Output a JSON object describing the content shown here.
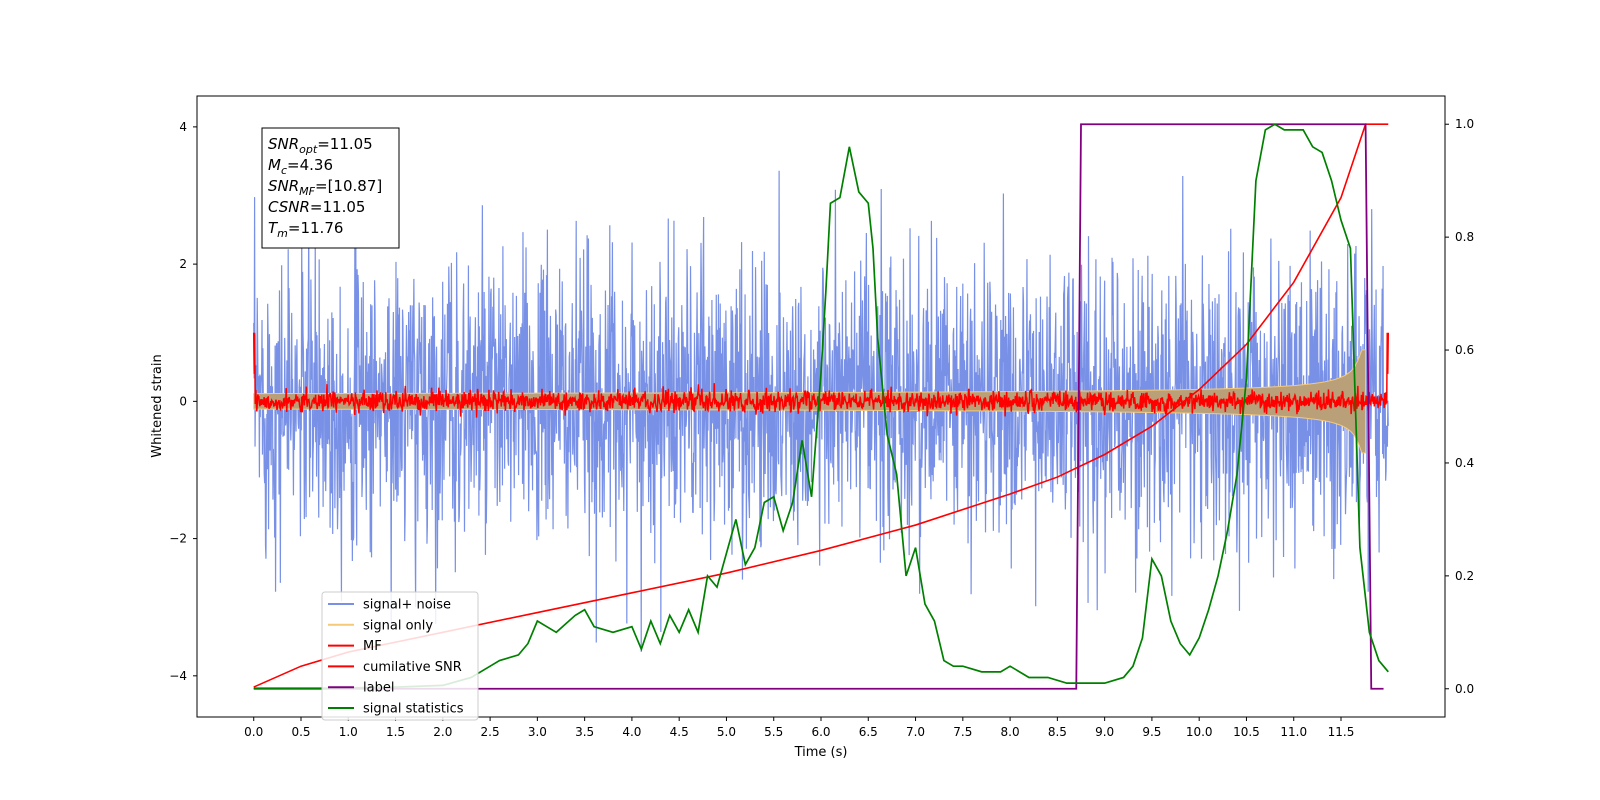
{
  "chart_data": {
    "type": "line",
    "xlabel": "Time (s)",
    "ylabel": "Whitened strain",
    "xlim": [
      -0.6,
      12.6
    ],
    "ylim": [
      -4.6,
      4.45
    ],
    "y2lim": [
      -0.05,
      1.05
    ],
    "x_ticks": [
      "0.0",
      "0.5",
      "1.0",
      "1.5",
      "2.0",
      "2.5",
      "3.0",
      "3.5",
      "4.0",
      "4.5",
      "5.0",
      "5.5",
      "6.0",
      "6.5",
      "7.0",
      "7.5",
      "8.0",
      "8.5",
      "9.0",
      "9.5",
      "10.0",
      "10.5",
      "11.0",
      "11.5"
    ],
    "y_ticks": [
      "4",
      "2",
      "0",
      "−2",
      "−4"
    ],
    "y2_ticks": [
      "1.0",
      "0.8",
      "0.6",
      "0.4",
      "0.2",
      "0.0"
    ],
    "legend_position": "bottom-left",
    "colors": {
      "signal_noise": "#7891e6",
      "signal_only": "#f5c97a",
      "mf": "#ff0000",
      "cumulative_snr": "#ff0000",
      "label": "#800080",
      "signal_statistics": "#008000"
    },
    "annotation": {
      "lines": [
        {
          "base": "SNR",
          "sub": "opt",
          "rest": "=11.05"
        },
        {
          "base": "M",
          "sub": "c",
          "rest": "=4.36"
        },
        {
          "base": "SNR",
          "sub": "MF",
          "rest": "=[10.87]"
        },
        {
          "base": "CSNR",
          "sub": "",
          "rest": "=11.05"
        },
        {
          "base": "T",
          "sub": "m",
          "rest": "=11.76"
        }
      ]
    },
    "series": [
      {
        "name": "signal+ noise",
        "axis": "left",
        "style": "noise band",
        "t_range": [
          0.0,
          12.0
        ],
        "amplitude_approx": [
          -4.1,
          4.05
        ]
      },
      {
        "name": "signal only",
        "axis": "left",
        "style": "chirp envelope",
        "t_range": [
          0.0,
          11.76
        ],
        "envelope_end": 0.75
      },
      {
        "name": "MF",
        "axis": "left",
        "style": "noisy trace",
        "t_range": [
          0.0,
          12.0
        ],
        "spread_approx": 0.15
      },
      {
        "name": "cumilative SNR",
        "axis": "right",
        "x": [
          0.0,
          0.5,
          1.0,
          2.0,
          3.0,
          4.0,
          5.0,
          6.0,
          7.0,
          8.0,
          8.5,
          9.0,
          9.5,
          10.0,
          10.5,
          11.0,
          11.5,
          11.76,
          12.0
        ],
        "y": [
          0.003,
          0.04,
          0.065,
          0.1,
          0.135,
          0.17,
          0.205,
          0.245,
          0.29,
          0.345,
          0.375,
          0.415,
          0.465,
          0.53,
          0.61,
          0.72,
          0.87,
          1.0,
          1.0
        ]
      },
      {
        "name": "label",
        "axis": "right",
        "x": [
          0.0,
          8.7,
          8.75,
          11.76,
          11.82,
          11.95
        ],
        "y": [
          0.0,
          0.0,
          1.0,
          1.0,
          0.0,
          0.0
        ]
      },
      {
        "name": "signal statistics",
        "axis": "right",
        "x": [
          0.0,
          0.8,
          1.5,
          2.0,
          2.3,
          2.5,
          2.6,
          2.8,
          2.9,
          3.0,
          3.1,
          3.2,
          3.4,
          3.5,
          3.6,
          3.8,
          4.0,
          4.1,
          4.2,
          4.3,
          4.4,
          4.5,
          4.6,
          4.7,
          4.8,
          4.9,
          5.0,
          5.1,
          5.2,
          5.3,
          5.4,
          5.5,
          5.6,
          5.7,
          5.8,
          5.9,
          6.0,
          6.05,
          6.1,
          6.2,
          6.3,
          6.4,
          6.5,
          6.55,
          6.6,
          6.7,
          6.8,
          6.9,
          7.0,
          7.1,
          7.2,
          7.3,
          7.4,
          7.5,
          7.7,
          7.9,
          8.0,
          8.2,
          8.4,
          8.6,
          8.8,
          9.0,
          9.2,
          9.3,
          9.4,
          9.5,
          9.6,
          9.7,
          9.8,
          9.9,
          10.0,
          10.1,
          10.2,
          10.3,
          10.4,
          10.5,
          10.6,
          10.7,
          10.8,
          10.9,
          11.0,
          11.1,
          11.2,
          11.3,
          11.4,
          11.5,
          11.6,
          11.7,
          11.8,
          11.9,
          12.0
        ],
        "y": [
          0.001,
          0.001,
          0.003,
          0.006,
          0.02,
          0.04,
          0.05,
          0.06,
          0.08,
          0.12,
          0.11,
          0.1,
          0.13,
          0.14,
          0.11,
          0.1,
          0.11,
          0.07,
          0.12,
          0.08,
          0.13,
          0.1,
          0.14,
          0.1,
          0.2,
          0.18,
          0.24,
          0.3,
          0.22,
          0.25,
          0.33,
          0.34,
          0.28,
          0.33,
          0.44,
          0.34,
          0.56,
          0.7,
          0.86,
          0.87,
          0.96,
          0.88,
          0.86,
          0.78,
          0.62,
          0.45,
          0.38,
          0.2,
          0.25,
          0.15,
          0.12,
          0.05,
          0.04,
          0.04,
          0.03,
          0.03,
          0.04,
          0.02,
          0.02,
          0.01,
          0.01,
          0.01,
          0.02,
          0.04,
          0.09,
          0.23,
          0.2,
          0.12,
          0.08,
          0.06,
          0.09,
          0.14,
          0.2,
          0.28,
          0.38,
          0.55,
          0.9,
          0.99,
          1.0,
          0.99,
          0.99,
          0.99,
          0.96,
          0.95,
          0.9,
          0.83,
          0.78,
          0.25,
          0.1,
          0.05,
          0.03
        ]
      }
    ]
  }
}
